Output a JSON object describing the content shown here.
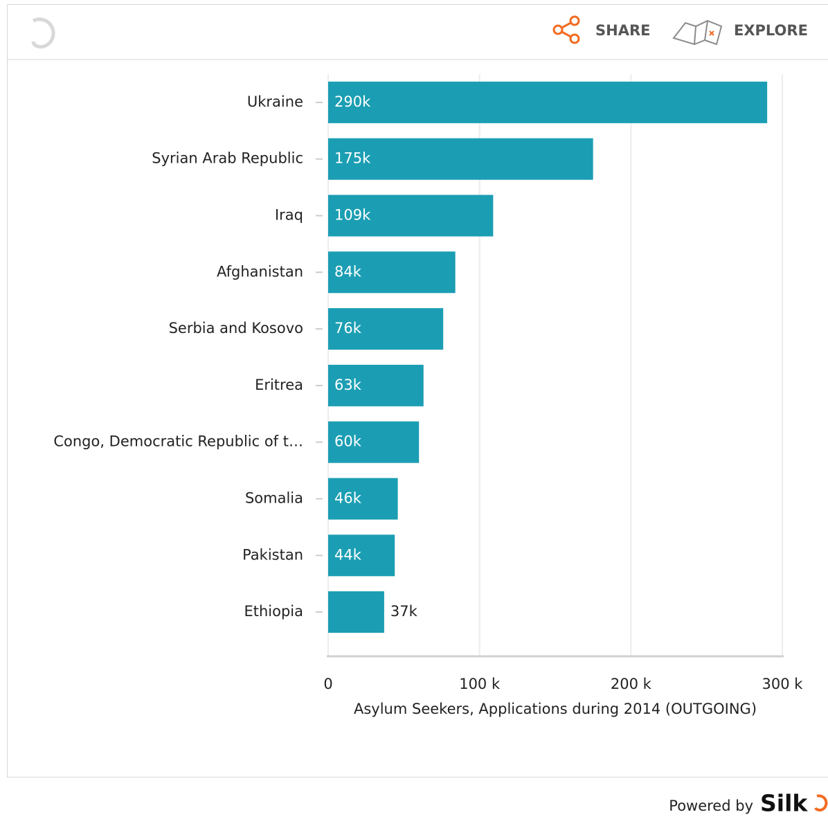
{
  "header": {
    "share": "SHARE",
    "explore": "EXPLORE"
  },
  "footer": {
    "powered_by": "Powered by",
    "brand": "Silk"
  },
  "chart_data": {
    "type": "bar",
    "orientation": "horizontal",
    "x_label": "Asylum Seekers, Applications during 2014 (OUTGOING)",
    "categories": [
      "Ukraine",
      "Syrian Arab Republic",
      "Iraq",
      "Afghanistan",
      "Serbia and Kosovo",
      "Eritrea",
      "Congo, Democratic Republic of t…",
      "Somalia",
      "Pakistan",
      "Ethiopia"
    ],
    "values": [
      290000,
      175000,
      109000,
      84000,
      76000,
      63000,
      60000,
      46000,
      44000,
      37000
    ],
    "value_labels": [
      "290k",
      "175k",
      "109k",
      "84k",
      "76k",
      "63k",
      "60k",
      "46k",
      "44k",
      "37k"
    ],
    "color": "#1b9eb3",
    "xlim": [
      0,
      300000
    ],
    "xticks": [
      0,
      {
        "value": 100000,
        "label": "100 k"
      },
      {
        "value": 200000,
        "label": "200 k"
      },
      {
        "value": 300000,
        "label": "300 k"
      }
    ],
    "grid": true
  }
}
